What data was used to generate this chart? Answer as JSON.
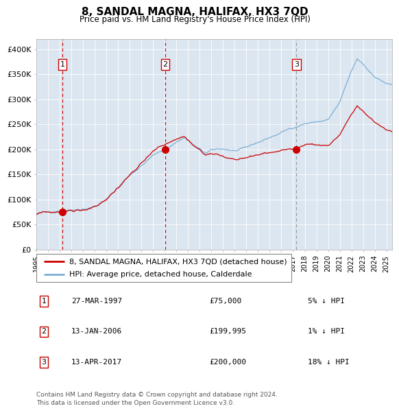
{
  "title": "8, SANDAL MAGNA, HALIFAX, HX3 7QD",
  "subtitle": "Price paid vs. HM Land Registry's House Price Index (HPI)",
  "legend_line1": "8, SANDAL MAGNA, HALIFAX, HX3 7QD (detached house)",
  "legend_line2": "HPI: Average price, detached house, Calderdale",
  "transactions": [
    {
      "num": 1,
      "date": "27-MAR-1997",
      "price": 75000,
      "pct": "5%",
      "dir": "↓",
      "x_year": 1997.23
    },
    {
      "num": 2,
      "date": "13-JAN-2006",
      "price": 199995,
      "pct": "1%",
      "dir": "↓",
      "x_year": 2006.04
    },
    {
      "num": 3,
      "date": "13-APR-2017",
      "price": 200000,
      "pct": "18%",
      "dir": "↓",
      "x_year": 2017.28
    }
  ],
  "footer": "Contains HM Land Registry data © Crown copyright and database right 2024.\nThis data is licensed under the Open Government Licence v3.0.",
  "hpi_color": "#7bafd4",
  "price_color": "#cc0000",
  "bg_color": "#dce6f0",
  "ylim": [
    0,
    420000
  ],
  "yticks": [
    0,
    50000,
    100000,
    150000,
    200000,
    250000,
    300000,
    350000,
    400000
  ],
  "xlim_start": 1995.0,
  "xlim_end": 2025.5
}
